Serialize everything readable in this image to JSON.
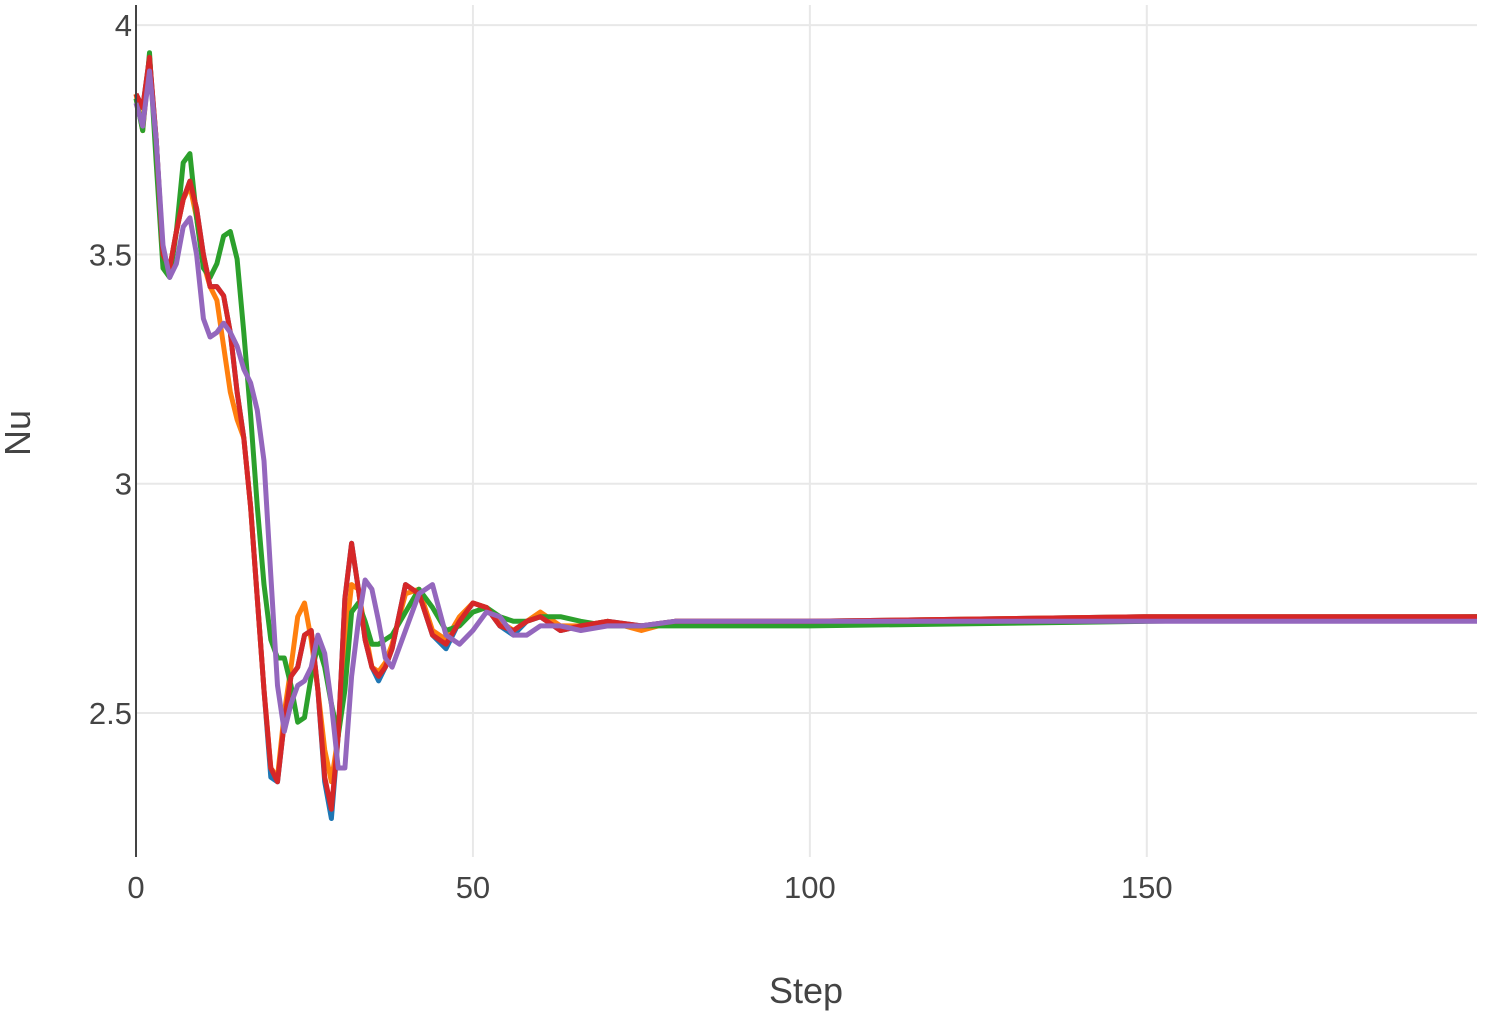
{
  "chart_data": {
    "type": "line",
    "x_label": "Step",
    "y_label": "Nu",
    "x": [
      0,
      1,
      2,
      3,
      4,
      5,
      6,
      7,
      8,
      9,
      10,
      11,
      12,
      13,
      14,
      15,
      16,
      17,
      18,
      19,
      20,
      21,
      22,
      23,
      24,
      25,
      26,
      27,
      28,
      29,
      30,
      31,
      32,
      33,
      34,
      35,
      36,
      37,
      38,
      40,
      42,
      44,
      46,
      48,
      50,
      52,
      54,
      56,
      58,
      60,
      63,
      66,
      70,
      75,
      80,
      90,
      100,
      150,
      199
    ],
    "series": [
      {
        "color": "#1f77b4",
        "values": [
          3.85,
          3.82,
          3.93,
          3.75,
          3.5,
          3.47,
          3.55,
          3.62,
          3.66,
          3.6,
          3.5,
          3.43,
          3.43,
          3.41,
          3.33,
          3.2,
          3.1,
          2.95,
          2.75,
          2.55,
          2.36,
          2.35,
          2.48,
          2.58,
          2.6,
          2.67,
          2.68,
          2.55,
          2.35,
          2.27,
          2.45,
          2.75,
          2.87,
          2.77,
          2.66,
          2.6,
          2.57,
          2.6,
          2.64,
          2.78,
          2.76,
          2.67,
          2.64,
          2.7,
          2.74,
          2.73,
          2.69,
          2.67,
          2.7,
          2.71,
          2.68,
          2.69,
          2.7,
          2.69,
          2.7,
          2.7,
          2.7,
          2.71,
          2.71
        ]
      },
      {
        "color": "#ff7f0e",
        "values": [
          3.85,
          3.77,
          3.92,
          3.75,
          3.5,
          3.47,
          3.55,
          3.62,
          3.65,
          3.58,
          3.48,
          3.43,
          3.4,
          3.3,
          3.2,
          3.14,
          3.1,
          2.95,
          2.75,
          2.55,
          2.38,
          2.36,
          2.5,
          2.6,
          2.71,
          2.74,
          2.66,
          2.55,
          2.42,
          2.35,
          2.45,
          2.65,
          2.78,
          2.77,
          2.68,
          2.6,
          2.59,
          2.61,
          2.65,
          2.76,
          2.77,
          2.68,
          2.66,
          2.71,
          2.74,
          2.73,
          2.7,
          2.68,
          2.7,
          2.72,
          2.69,
          2.69,
          2.7,
          2.68,
          2.7,
          2.7,
          2.7,
          2.71,
          2.71
        ]
      },
      {
        "color": "#2ca02c",
        "values": [
          3.84,
          3.77,
          3.94,
          3.7,
          3.47,
          3.45,
          3.55,
          3.7,
          3.72,
          3.58,
          3.47,
          3.45,
          3.48,
          3.54,
          3.55,
          3.49,
          3.33,
          3.15,
          2.95,
          2.78,
          2.66,
          2.62,
          2.62,
          2.56,
          2.48,
          2.49,
          2.58,
          2.65,
          2.6,
          2.52,
          2.45,
          2.55,
          2.72,
          2.74,
          2.7,
          2.65,
          2.65,
          2.66,
          2.67,
          2.72,
          2.77,
          2.73,
          2.68,
          2.69,
          2.72,
          2.73,
          2.71,
          2.7,
          2.7,
          2.71,
          2.71,
          2.7,
          2.69,
          2.69,
          2.69,
          2.69,
          2.69,
          2.7,
          2.71
        ]
      },
      {
        "color": "#d62728",
        "values": [
          3.85,
          3.82,
          3.93,
          3.75,
          3.5,
          3.47,
          3.55,
          3.62,
          3.66,
          3.6,
          3.5,
          3.43,
          3.43,
          3.41,
          3.33,
          3.2,
          3.1,
          2.95,
          2.75,
          2.55,
          2.38,
          2.35,
          2.48,
          2.58,
          2.6,
          2.67,
          2.68,
          2.55,
          2.36,
          2.29,
          2.45,
          2.75,
          2.87,
          2.77,
          2.66,
          2.6,
          2.58,
          2.6,
          2.64,
          2.78,
          2.76,
          2.67,
          2.65,
          2.7,
          2.74,
          2.73,
          2.69,
          2.68,
          2.7,
          2.71,
          2.68,
          2.69,
          2.7,
          2.69,
          2.7,
          2.7,
          2.7,
          2.71,
          2.71
        ]
      },
      {
        "color": "#9467bd",
        "values": [
          3.83,
          3.78,
          3.9,
          3.75,
          3.52,
          3.45,
          3.48,
          3.56,
          3.58,
          3.5,
          3.36,
          3.32,
          3.33,
          3.35,
          3.33,
          3.3,
          3.25,
          3.22,
          3.16,
          3.05,
          2.8,
          2.56,
          2.46,
          2.52,
          2.56,
          2.57,
          2.6,
          2.67,
          2.63,
          2.52,
          2.38,
          2.38,
          2.58,
          2.7,
          2.79,
          2.77,
          2.7,
          2.62,
          2.6,
          2.68,
          2.76,
          2.78,
          2.67,
          2.65,
          2.68,
          2.72,
          2.71,
          2.67,
          2.67,
          2.69,
          2.69,
          2.68,
          2.69,
          2.69,
          2.7,
          2.7,
          2.7,
          2.7,
          2.7
        ]
      }
    ],
    "xlim": [
      0,
      199
    ],
    "ylim": [
      2.186,
      4.044
    ],
    "xticks": [
      0,
      50,
      100,
      150
    ],
    "yticks": [
      2.5,
      3,
      3.5,
      4
    ],
    "grid": true
  }
}
